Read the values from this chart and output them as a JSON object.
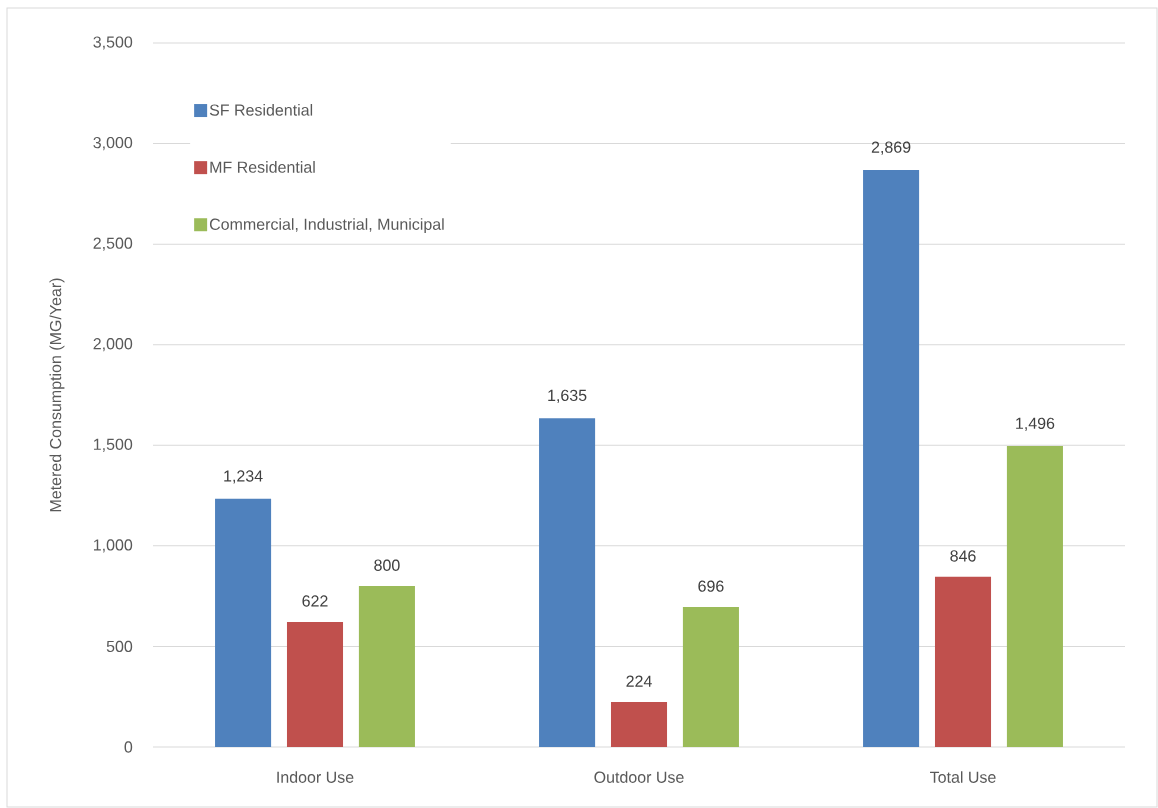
{
  "chart_data": {
    "type": "bar",
    "ylabel": "Metered Consumption (MG/Year)",
    "categories": [
      "Indoor Use",
      "Outdoor Use",
      "Total Use"
    ],
    "series": [
      {
        "name": "SF Residential",
        "color": "#4f81bd",
        "values": [
          1234,
          1635,
          2869
        ],
        "value_labels": [
          "1,234",
          "1,635",
          "2,869"
        ]
      },
      {
        "name": "MF Residential",
        "color": "#c0504d",
        "values": [
          622,
          224,
          846
        ],
        "value_labels": [
          "622",
          "224",
          "846"
        ]
      },
      {
        "name": "Commercial, Industrial, Municipal",
        "color": "#9bbb59",
        "values": [
          800,
          696,
          1496
        ],
        "value_labels": [
          "800",
          "696",
          "1,496"
        ]
      }
    ],
    "ylim": [
      0,
      3500
    ],
    "yticks": [
      0,
      500,
      {
        "value": 1000,
        "label": "1,000"
      },
      {
        "value": 1500,
        "label": "1,500"
      },
      {
        "value": 2000,
        "label": "2,000"
      },
      {
        "value": 2500,
        "label": "2,500"
      },
      {
        "value": 3000,
        "label": "3,000"
      },
      {
        "value": 3500,
        "label": "3,500"
      }
    ],
    "grid": "y",
    "legend": "top left"
  }
}
